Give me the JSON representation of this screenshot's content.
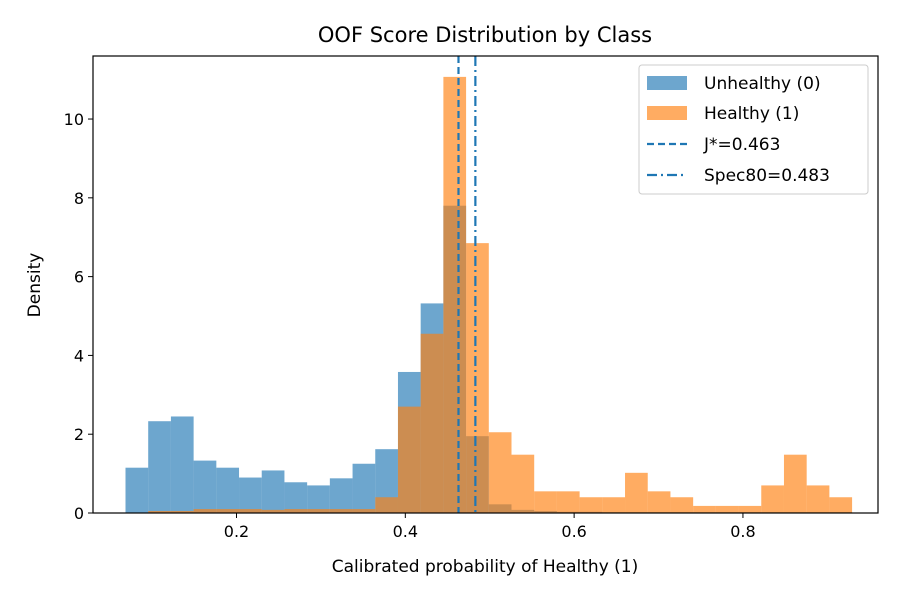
{
  "chart_data": {
    "type": "histogram",
    "title": "OOF Score Distribution by Class",
    "xlabel": "Calibrated probability of Healthy (1)",
    "ylabel": "Density",
    "xlim": [
      0.03,
      0.96
    ],
    "ylim": [
      0,
      11.6
    ],
    "xticks": [
      0.2,
      0.4,
      0.6,
      0.8
    ],
    "xtick_labels": [
      "0.2",
      "0.4",
      "0.6",
      "0.8"
    ],
    "yticks": [
      0,
      2,
      4,
      6,
      8,
      10
    ],
    "ytick_labels": [
      "0",
      "2",
      "4",
      "6",
      "8",
      "10"
    ],
    "grid": false,
    "legend_position": "top-right",
    "series": [
      {
        "name": "Unhealthy (0)",
        "color": "#1f77b4",
        "alpha": 0.65,
        "bin_start": 0.0685,
        "bin_width": 0.0269,
        "values": [
          1.15,
          2.33,
          2.45,
          1.33,
          1.15,
          0.9,
          1.08,
          0.78,
          0.7,
          0.88,
          1.25,
          1.62,
          3.58,
          5.32,
          7.8,
          1.95,
          0.22,
          0.08,
          0.05,
          0.03,
          0.03,
          0.02,
          0.02,
          0.02,
          0.02,
          0.02,
          0.02,
          0.02,
          0.02,
          0.02,
          0.02,
          0.02
        ]
      },
      {
        "name": "Healthy (1)",
        "color": "#ff7f0e",
        "alpha": 0.65,
        "bin_start": 0.0685,
        "bin_width": 0.0269,
        "values": [
          0.0,
          0.05,
          0.05,
          0.1,
          0.1,
          0.1,
          0.08,
          0.1,
          0.1,
          0.1,
          0.1,
          0.4,
          2.7,
          4.55,
          11.07,
          6.85,
          2.05,
          1.48,
          0.55,
          0.55,
          0.4,
          0.4,
          1.02,
          0.55,
          0.4,
          0.18,
          0.18,
          0.18,
          0.7,
          1.48,
          0.7,
          0.4
        ]
      }
    ],
    "reference_lines": [
      {
        "name": "J*=0.463",
        "x": 0.463,
        "style": "dashed",
        "color": "#1f77b4"
      },
      {
        "name": "Spec80=0.483",
        "x": 0.483,
        "style": "dashdot",
        "color": "#1f77b4"
      }
    ]
  }
}
